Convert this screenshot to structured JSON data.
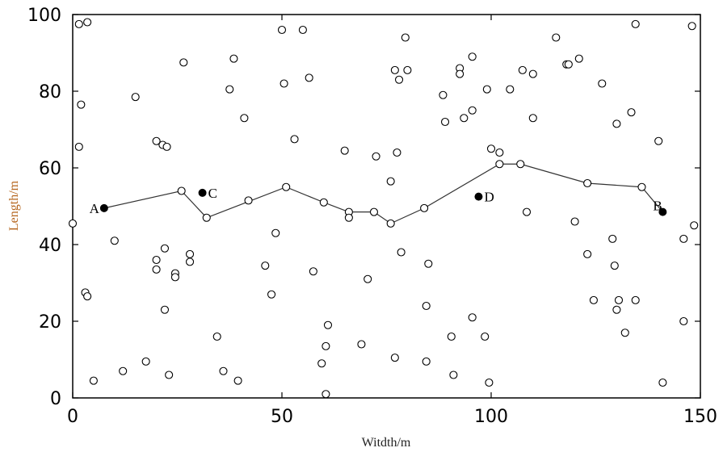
{
  "chart_data": {
    "type": "scatter",
    "title": "",
    "xlabel": "Witdth/m",
    "ylabel": "Length/m",
    "xlim": [
      0,
      150
    ],
    "ylim": [
      0,
      100
    ],
    "xticks": [
      "0",
      "50",
      "100",
      "150"
    ],
    "yticks": [
      "0",
      "20",
      "40",
      "60",
      "80",
      "100"
    ],
    "grid": false,
    "colors": {
      "axes": "#000000",
      "ylabel": "#b5651d",
      "xlabel": "#222222"
    },
    "path": [
      {
        "x": 7.5,
        "y": 49.5
      },
      {
        "x": 26,
        "y": 54
      },
      {
        "x": 32,
        "y": 47
      },
      {
        "x": 51,
        "y": 55
      },
      {
        "x": 60,
        "y": 51
      },
      {
        "x": 66,
        "y": 48.5
      },
      {
        "x": 72,
        "y": 48.5
      },
      {
        "x": 76,
        "y": 45.5
      },
      {
        "x": 84,
        "y": 49.5
      },
      {
        "x": 102,
        "y": 61
      },
      {
        "x": 107,
        "y": 61
      },
      {
        "x": 123,
        "y": 56
      },
      {
        "x": 136,
        "y": 55
      },
      {
        "x": 141,
        "y": 48.5
      }
    ],
    "labeled_points": [
      {
        "label": "A",
        "x": 7.5,
        "y": 49.5
      },
      {
        "label": "C",
        "x": 31,
        "y": 53.5
      },
      {
        "label": "D",
        "x": 97,
        "y": 52.5
      },
      {
        "label": "B",
        "x": 141,
        "y": 48.5
      }
    ],
    "points": [
      {
        "x": 1.5,
        "y": 97.5
      },
      {
        "x": 3.5,
        "y": 98
      },
      {
        "x": 1.5,
        "y": 65.5
      },
      {
        "x": 2,
        "y": 76.5
      },
      {
        "x": 0,
        "y": 45.5
      },
      {
        "x": 3,
        "y": 27.5
      },
      {
        "x": 3.5,
        "y": 26.5
      },
      {
        "x": 5,
        "y": 4.5
      },
      {
        "x": 10,
        "y": 41
      },
      {
        "x": 12,
        "y": 7
      },
      {
        "x": 15,
        "y": 78.5
      },
      {
        "x": 17.5,
        "y": 9.5
      },
      {
        "x": 20,
        "y": 67
      },
      {
        "x": 20,
        "y": 36
      },
      {
        "x": 20,
        "y": 33.5
      },
      {
        "x": 21.5,
        "y": 66
      },
      {
        "x": 22.5,
        "y": 65.5
      },
      {
        "x": 22,
        "y": 39
      },
      {
        "x": 22,
        "y": 23
      },
      {
        "x": 23,
        "y": 6
      },
      {
        "x": 24.5,
        "y": 32.5
      },
      {
        "x": 24.5,
        "y": 31.5
      },
      {
        "x": 26.5,
        "y": 87.5
      },
      {
        "x": 28,
        "y": 37.5
      },
      {
        "x": 28,
        "y": 35.5
      },
      {
        "x": 34.5,
        "y": 16
      },
      {
        "x": 36,
        "y": 7
      },
      {
        "x": 37.5,
        "y": 80.5
      },
      {
        "x": 38.5,
        "y": 88.5
      },
      {
        "x": 39.5,
        "y": 4.5
      },
      {
        "x": 41,
        "y": 73
      },
      {
        "x": 42,
        "y": 51.5
      },
      {
        "x": 46,
        "y": 34.5
      },
      {
        "x": 47.5,
        "y": 27
      },
      {
        "x": 48.5,
        "y": 43
      },
      {
        "x": 50,
        "y": 96
      },
      {
        "x": 50.5,
        "y": 82
      },
      {
        "x": 53,
        "y": 67.5
      },
      {
        "x": 55,
        "y": 96
      },
      {
        "x": 56.5,
        "y": 83.5
      },
      {
        "x": 57.5,
        "y": 33
      },
      {
        "x": 59.5,
        "y": 9
      },
      {
        "x": 60.5,
        "y": 13.5
      },
      {
        "x": 60.5,
        "y": 1
      },
      {
        "x": 61,
        "y": 19
      },
      {
        "x": 65,
        "y": 64.5
      },
      {
        "x": 66,
        "y": 47
      },
      {
        "x": 69,
        "y": 14
      },
      {
        "x": 70.5,
        "y": 31
      },
      {
        "x": 72.5,
        "y": 63
      },
      {
        "x": 76,
        "y": 56.5
      },
      {
        "x": 77,
        "y": 85.5
      },
      {
        "x": 77.5,
        "y": 64
      },
      {
        "x": 77,
        "y": 10.5
      },
      {
        "x": 78,
        "y": 83
      },
      {
        "x": 78.5,
        "y": 38
      },
      {
        "x": 79.5,
        "y": 94
      },
      {
        "x": 80,
        "y": 85.5
      },
      {
        "x": 85,
        "y": 35
      },
      {
        "x": 84.5,
        "y": 24
      },
      {
        "x": 84.5,
        "y": 9.5
      },
      {
        "x": 88.5,
        "y": 79
      },
      {
        "x": 89,
        "y": 72
      },
      {
        "x": 90.5,
        "y": 16
      },
      {
        "x": 91,
        "y": 6
      },
      {
        "x": 92.5,
        "y": 86
      },
      {
        "x": 92.5,
        "y": 84.5
      },
      {
        "x": 93.5,
        "y": 73
      },
      {
        "x": 95.5,
        "y": 89
      },
      {
        "x": 95.5,
        "y": 75
      },
      {
        "x": 95.5,
        "y": 21
      },
      {
        "x": 99,
        "y": 80.5
      },
      {
        "x": 98.5,
        "y": 16
      },
      {
        "x": 99.5,
        "y": 4
      },
      {
        "x": 100,
        "y": 65
      },
      {
        "x": 102,
        "y": 64
      },
      {
        "x": 104.5,
        "y": 80.5
      },
      {
        "x": 107.5,
        "y": 85.5
      },
      {
        "x": 108.5,
        "y": 48.5
      },
      {
        "x": 110,
        "y": 84.5
      },
      {
        "x": 110,
        "y": 73
      },
      {
        "x": 115.5,
        "y": 94
      },
      {
        "x": 118,
        "y": 87
      },
      {
        "x": 118.5,
        "y": 87
      },
      {
        "x": 120,
        "y": 46
      },
      {
        "x": 121,
        "y": 88.5
      },
      {
        "x": 123,
        "y": 37.5
      },
      {
        "x": 124.5,
        "y": 25.5
      },
      {
        "x": 126.5,
        "y": 82
      },
      {
        "x": 129,
        "y": 41.5
      },
      {
        "x": 129.5,
        "y": 34.5
      },
      {
        "x": 130,
        "y": 71.5
      },
      {
        "x": 130,
        "y": 23
      },
      {
        "x": 130.5,
        "y": 25.5
      },
      {
        "x": 132,
        "y": 17
      },
      {
        "x": 133.5,
        "y": 74.5
      },
      {
        "x": 134.5,
        "y": 97.5
      },
      {
        "x": 134.5,
        "y": 25.5
      },
      {
        "x": 140,
        "y": 67
      },
      {
        "x": 141,
        "y": 4
      },
      {
        "x": 146,
        "y": 41.5
      },
      {
        "x": 146,
        "y": 20
      },
      {
        "x": 148,
        "y": 97
      },
      {
        "x": 148.5,
        "y": 45
      }
    ]
  }
}
